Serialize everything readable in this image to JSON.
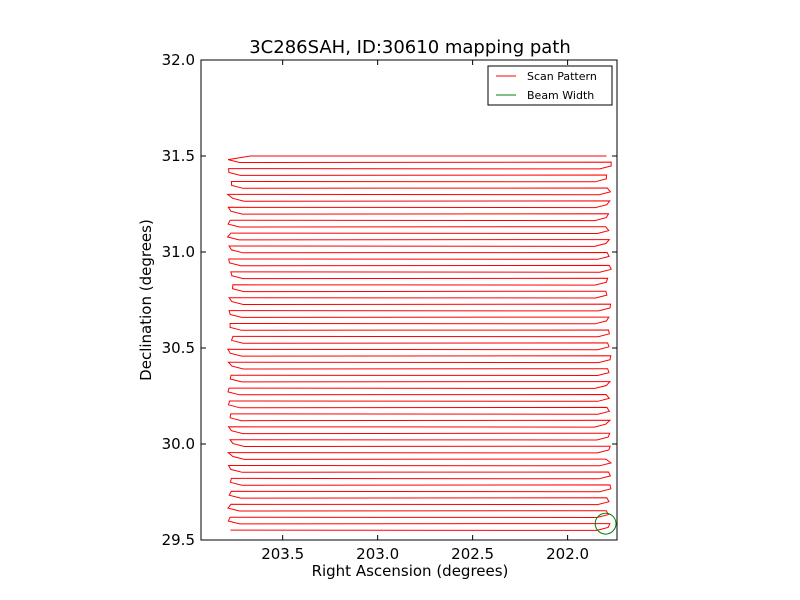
{
  "chart_data": {
    "type": "line",
    "title": "3C286SAH, ID:30610 mapping path",
    "xlabel": "Right Ascension (degrees)",
    "ylabel": "Declination (degrees)",
    "xlim": [
      203.93,
      201.74
    ],
    "ylim": [
      29.5,
      32.0
    ],
    "x_reversed": true,
    "x_ticks": [
      203.5,
      203.0,
      202.5,
      202.0
    ],
    "x_tick_labels": [
      "203.5",
      "203.0",
      "202.5",
      "202.0"
    ],
    "y_ticks": [
      29.5,
      30.0,
      30.5,
      31.0,
      31.5,
      32.0
    ],
    "y_tick_labels": [
      "29.5",
      "30.0",
      "30.5",
      "31.0",
      "31.5",
      "32.0"
    ],
    "grid": false,
    "legend_position": "top-right",
    "series": [
      {
        "name": "Scan Pattern",
        "color": "#ff0000",
        "scan": {
          "ra_east": 203.78,
          "ra_west": 201.78,
          "dec_start": 29.55,
          "dec_end": 31.5,
          "row_count": 59,
          "start_ra": 203.67
        }
      },
      {
        "name": "Beam Width",
        "color": "#008000",
        "circle": {
          "ra": 201.8,
          "dec": 29.585,
          "radius_deg": 0.055
        }
      }
    ]
  }
}
